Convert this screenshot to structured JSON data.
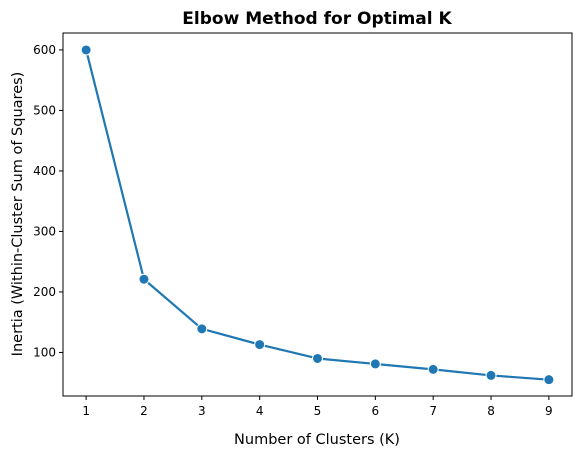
{
  "chart_data": {
    "type": "line",
    "title": "Elbow Method for Optimal K",
    "xlabel": "Number of Clusters (K)",
    "ylabel": "Inertia (Within-Cluster Sum of Squares)",
    "x": [
      1,
      2,
      3,
      4,
      5,
      6,
      7,
      8,
      9
    ],
    "xticks": [
      1,
      2,
      3,
      4,
      5,
      6,
      7,
      8,
      9
    ],
    "yticks": [
      100,
      200,
      300,
      400,
      500,
      600
    ],
    "xlim": [
      0.6,
      9.4
    ],
    "ylim": [
      28,
      628
    ],
    "grid": false,
    "series": [
      {
        "values": [
          600,
          221,
          139,
          113,
          90,
          81,
          72,
          62,
          55
        ],
        "color": "#1f77b4",
        "marker": "circle"
      }
    ]
  }
}
